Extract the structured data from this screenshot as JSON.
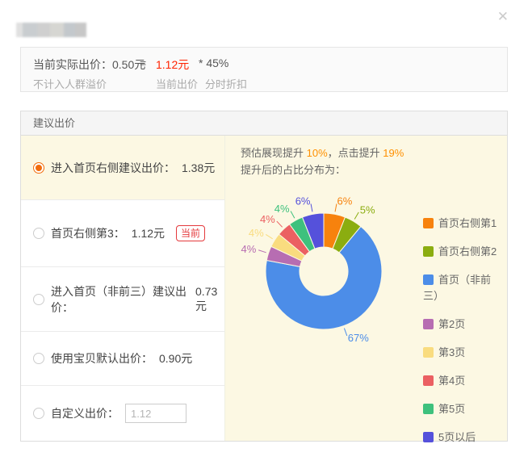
{
  "dialog": {
    "close_icon": "✕"
  },
  "summary_box": {
    "actual_bid_line": "当前实际出价：0.50元",
    "equals": "=",
    "current_bid_value": "1.12元",
    "multiplier": "* 45%",
    "note_left": "不计入人群溢价",
    "note_mid": "当前出价",
    "note_right": "分时折扣"
  },
  "suggest_panel": {
    "header": "建议出价",
    "options": [
      {
        "label": "进入首页右侧建议出价：",
        "value": "1.38元",
        "selected": true
      },
      {
        "label": "首页右侧第3：",
        "value": "1.12元",
        "badge": "当前",
        "selected": false
      },
      {
        "label": "进入首页（非前三）建议出价：",
        "value": "0.73元",
        "selected": false
      },
      {
        "label": "使用宝贝默认出价：",
        "value": "0.90元",
        "selected": false
      },
      {
        "label": "自定义出价：",
        "input_value": "1.12",
        "selected": false
      }
    ]
  },
  "forecast": {
    "line1_prefix": "预估展现提升 ",
    "impression_lift": "10%",
    "line1_mid": "，点击提升 ",
    "click_lift": "19%",
    "line2": "提升后的占比分布为："
  },
  "chart_data": {
    "type": "pie",
    "donut": true,
    "start_angle_deg": 0,
    "clockwise": true,
    "outer_radius": 72,
    "inner_radius": 30,
    "legend_position": "right",
    "background": "#FCF8E3",
    "slices": [
      {
        "label": "首页右侧第1",
        "value": 6,
        "color": "#F7820D"
      },
      {
        "label": "首页右侧第2",
        "value": 5,
        "color": "#8BAD10"
      },
      {
        "label": "首页（非前三）",
        "value": 67,
        "color": "#4C8DE8"
      },
      {
        "label": "第2页",
        "value": 4,
        "color": "#B76DB2"
      },
      {
        "label": "第3页",
        "value": 4,
        "color": "#F9DC7F"
      },
      {
        "label": "第4页",
        "value": 4,
        "color": "#EB6062"
      },
      {
        "label": "第5页",
        "value": 4,
        "color": "#3EC17D"
      },
      {
        "label": "5页以后",
        "value": 6,
        "color": "#5551DB"
      }
    ]
  }
}
